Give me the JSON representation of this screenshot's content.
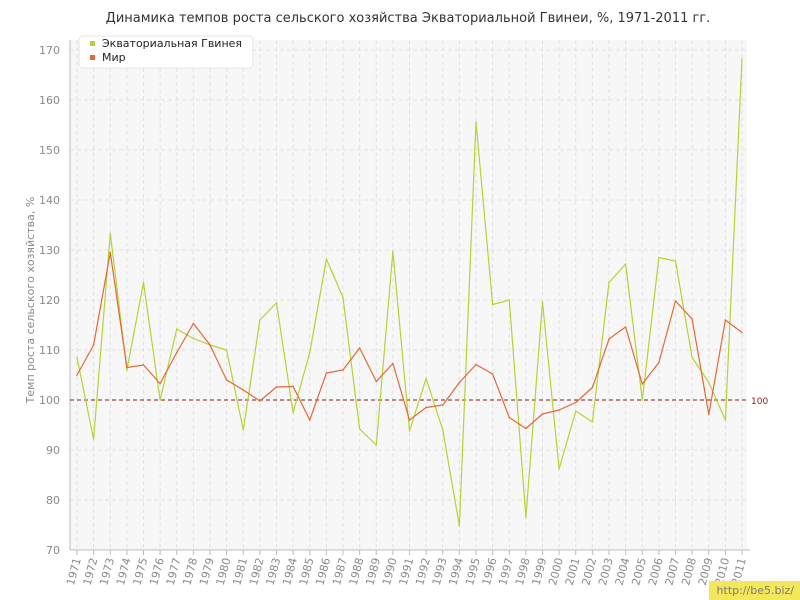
{
  "chart_data": {
    "type": "line",
    "title": "Динамика темпов роста сельского хозяйства Экваториальной Гвинеи, %, 1971-2011 гг.",
    "xlabel": "",
    "ylabel": "Темп роста сельского хозяйства, %",
    "ylim": [
      70,
      170
    ],
    "yticks": [
      70,
      80,
      90,
      100,
      110,
      120,
      130,
      140,
      150,
      160,
      170
    ],
    "grid": true,
    "legend_position": "top-left",
    "reference_line": {
      "value": 100,
      "label": "100",
      "color": "#8b1a1a"
    },
    "x": [
      "1971",
      "1972",
      "1973",
      "1974",
      "1975",
      "1976",
      "1977",
      "1978",
      "1979",
      "1980",
      "1981",
      "1982",
      "1983",
      "1984",
      "1985",
      "1986",
      "1987",
      "1988",
      "1989",
      "1990",
      "1991",
      "1992",
      "1993",
      "1994",
      "1995",
      "1996",
      "1997",
      "1998",
      "1999",
      "2000",
      "2001",
      "2002",
      "2003",
      "2004",
      "2005",
      "2006",
      "2007",
      "2008",
      "2009",
      "2010",
      "2011"
    ],
    "series": [
      {
        "name": "Экваториальная Гвинея",
        "color": "#b5d334",
        "values": [
          108.5,
          92.2,
          133.3,
          106.0,
          123.5,
          100.0,
          114.2,
          112.3,
          111.0,
          110.0,
          94.0,
          116.0,
          119.4,
          97.5,
          109.5,
          128.2,
          120.5,
          94.2,
          91.0,
          129.7,
          93.8,
          104.3,
          94.0,
          74.8,
          155.6,
          119.1,
          120.0,
          76.5,
          119.6,
          86.2,
          97.8,
          95.6,
          123.5,
          127.2,
          100.0,
          128.5,
          127.8,
          108.5,
          103.5,
          96.0,
          168.2
        ]
      },
      {
        "name": "Мир",
        "color": "#e06a3a",
        "values": [
          105.0,
          111.0,
          129.5,
          106.5,
          107.0,
          103.3,
          109.5,
          115.3,
          111.0,
          104.0,
          102.0,
          99.8,
          102.6,
          102.7,
          96.0,
          105.4,
          106.0,
          110.4,
          103.7,
          107.3,
          96.0,
          98.5,
          99.0,
          103.5,
          107.1,
          105.2,
          96.5,
          94.3,
          97.2,
          98.0,
          99.5,
          102.5,
          112.2,
          114.6,
          103.2,
          107.5,
          119.8,
          116.2,
          97.1,
          116.0,
          113.5
        ]
      }
    ]
  },
  "watermark": "http://be5.biz/"
}
